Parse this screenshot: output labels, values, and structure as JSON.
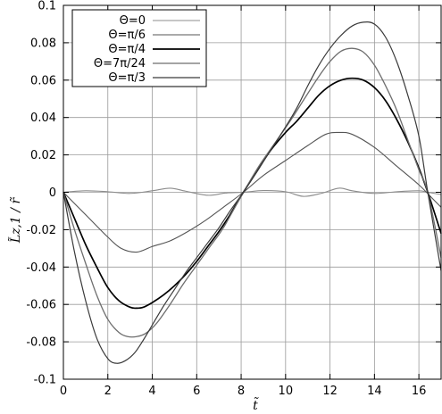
{
  "chart_data": {
    "type": "line",
    "xlabel": "t̃",
    "ylabel": "L̃z,1 / r̃",
    "xlim": [
      0,
      17
    ],
    "ylim": [
      -0.1,
      0.1
    ],
    "x_ticks": [
      0,
      2,
      4,
      6,
      8,
      10,
      12,
      14,
      16
    ],
    "y_ticks": [
      -0.1,
      -0.08,
      -0.06,
      -0.04,
      -0.02,
      0,
      0.02,
      0.04,
      0.06,
      0.08,
      0.1
    ],
    "x_tick_labels": [
      "0",
      "2",
      "4",
      "6",
      "8",
      "10",
      "12",
      "14",
      "16"
    ],
    "y_tick_labels": [
      "-0.1",
      "-0.08",
      "-0.06",
      "-0.04",
      "-0.02",
      "0",
      "0.02",
      "0.04",
      "0.06",
      "0.08",
      "0.1"
    ],
    "grid": true,
    "legend_position": "top-left",
    "series": [
      {
        "name": "Θ=0",
        "color": "#8c8c8c",
        "x": [
          0,
          1,
          2,
          3,
          4,
          4.8,
          5.5,
          6.5,
          7.3,
          8.1,
          9,
          10,
          10.8,
          11.6,
          12.4,
          13,
          14,
          15,
          16,
          16.4,
          17
        ],
        "y": [
          0,
          0.0008,
          0.0003,
          -0.0006,
          0.0008,
          0.0022,
          0.0006,
          -0.0016,
          -0.0004,
          0,
          0.0009,
          0.0003,
          -0.0022,
          -0.0006,
          0.0022,
          0.0008,
          -0.0006,
          0.0003,
          0.0008,
          0,
          -0.0012
        ]
      },
      {
        "name": "Θ=π/6",
        "color": "#555555",
        "x": [
          0,
          1,
          2,
          2.6,
          3.3,
          4,
          4.8,
          5.6,
          6.4,
          7.2,
          8.1,
          9,
          10,
          11,
          11.8,
          12.4,
          13,
          14,
          15,
          16,
          16.5,
          17
        ],
        "y": [
          0,
          -0.012,
          -0.024,
          -0.03,
          -0.032,
          -0.029,
          -0.026,
          -0.021,
          -0.015,
          -0.008,
          0,
          0.009,
          0.017,
          0.025,
          0.031,
          0.032,
          0.031,
          0.024,
          0.014,
          0.004,
          -0.002,
          -0.008
        ]
      },
      {
        "name": "Θ=π/4",
        "color": "#000000",
        "x": [
          0,
          0.5,
          1,
          1.5,
          2,
          2.5,
          3,
          3.3,
          3.6,
          4,
          4.5,
          5,
          5.5,
          6,
          6.5,
          7,
          7.5,
          8.1,
          8.7,
          9.3,
          10,
          10.5,
          11,
          11.5,
          12,
          12.5,
          13,
          13.5,
          14,
          14.5,
          15,
          15.5,
          16,
          16.4,
          17
        ],
        "y": [
          0,
          -0.014,
          -0.028,
          -0.04,
          -0.051,
          -0.058,
          -0.0615,
          -0.062,
          -0.0615,
          -0.059,
          -0.055,
          -0.05,
          -0.044,
          -0.037,
          -0.029,
          -0.021,
          -0.012,
          0,
          0.011,
          0.022,
          0.032,
          0.038,
          0.045,
          0.052,
          0.057,
          0.06,
          0.061,
          0.06,
          0.056,
          0.049,
          0.039,
          0.027,
          0.013,
          0,
          -0.022
        ]
      },
      {
        "name": "Θ=7π/24",
        "color": "#6e6e6e",
        "x": [
          0,
          0.5,
          1,
          1.5,
          2,
          2.5,
          2.9,
          3.3,
          3.7,
          4.2,
          4.8,
          5.4,
          6,
          6.6,
          7.2,
          8.1,
          8.8,
          9.5,
          10.2,
          10.9,
          11.5,
          12,
          12.5,
          13,
          13.5,
          14,
          14.5,
          15,
          15.5,
          16,
          16.4,
          17
        ],
        "y": [
          0,
          -0.02,
          -0.038,
          -0.055,
          -0.068,
          -0.075,
          -0.0772,
          -0.0772,
          -0.0755,
          -0.07,
          -0.06,
          -0.049,
          -0.039,
          -0.029,
          -0.019,
          0,
          0.014,
          0.026,
          0.038,
          0.051,
          0.062,
          0.07,
          0.0755,
          0.077,
          0.075,
          0.068,
          0.057,
          0.044,
          0.028,
          0.012,
          0,
          -0.035
        ]
      },
      {
        "name": "Θ=π/3",
        "color": "#3a3a3a",
        "x": [
          0,
          0.5,
          1,
          1.5,
          2,
          2.4,
          2.8,
          3.2,
          3.6,
          4,
          4.5,
          5,
          5.5,
          6,
          6.5,
          7,
          7.5,
          8.1,
          8.7,
          9.3,
          10,
          10.5,
          11,
          11.5,
          12,
          12.5,
          13,
          13.5,
          14,
          14.5,
          15,
          15.5,
          16,
          16.4,
          17
        ],
        "y": [
          0,
          -0.032,
          -0.058,
          -0.078,
          -0.089,
          -0.0915,
          -0.09,
          -0.086,
          -0.079,
          -0.071,
          -0.061,
          -0.052,
          -0.043,
          -0.035,
          -0.027,
          -0.019,
          -0.01,
          0,
          0.011,
          0.022,
          0.035,
          0.045,
          0.057,
          0.068,
          0.077,
          0.084,
          0.089,
          0.091,
          0.09,
          0.083,
          0.07,
          0.052,
          0.03,
          0,
          -0.042
        ]
      }
    ]
  }
}
